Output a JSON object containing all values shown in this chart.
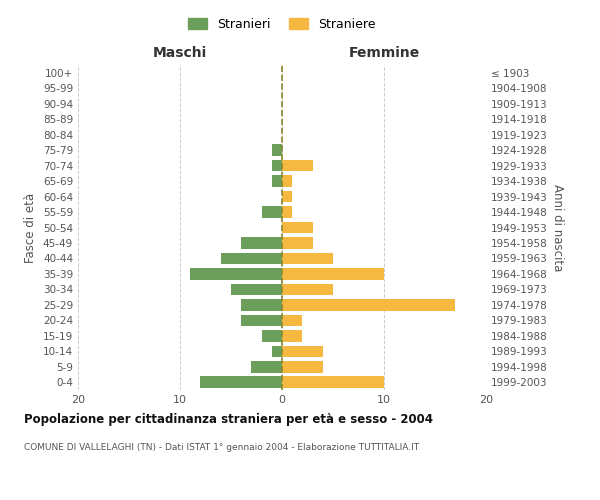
{
  "age_groups": [
    "0-4",
    "5-9",
    "10-14",
    "15-19",
    "20-24",
    "25-29",
    "30-34",
    "35-39",
    "40-44",
    "45-49",
    "50-54",
    "55-59",
    "60-64",
    "65-69",
    "70-74",
    "75-79",
    "80-84",
    "85-89",
    "90-94",
    "95-99",
    "100+"
  ],
  "birth_years": [
    "1999-2003",
    "1994-1998",
    "1989-1993",
    "1984-1988",
    "1979-1983",
    "1974-1978",
    "1969-1973",
    "1964-1968",
    "1959-1963",
    "1954-1958",
    "1949-1953",
    "1944-1948",
    "1939-1943",
    "1934-1938",
    "1929-1933",
    "1924-1928",
    "1919-1923",
    "1914-1918",
    "1909-1913",
    "1904-1908",
    "≤ 1903"
  ],
  "maschi": [
    8,
    3,
    1,
    2,
    4,
    4,
    5,
    9,
    6,
    4,
    0,
    2,
    0,
    1,
    1,
    1,
    0,
    0,
    0,
    0,
    0
  ],
  "femmine": [
    10,
    4,
    4,
    2,
    2,
    17,
    5,
    10,
    5,
    3,
    3,
    1,
    1,
    1,
    3,
    0,
    0,
    0,
    0,
    0,
    0
  ],
  "color_maschi": "#6a9e5a",
  "color_femmine": "#f5b942",
  "title": "Popolazione per cittadinanza straniera per età e sesso - 2004",
  "subtitle": "COMUNE DI VALLELAGHI (TN) - Dati ISTAT 1° gennaio 2004 - Elaborazione TUTTITALIA.IT",
  "label_maschi": "Maschi",
  "label_femmine": "Femmine",
  "ylabel_left": "Fasce di età",
  "ylabel_right": "Anni di nascita",
  "legend_maschi": "Stranieri",
  "legend_femmine": "Straniere",
  "xlim": 20,
  "background_color": "#ffffff",
  "grid_color": "#cccccc",
  "zeroline_color": "#888830"
}
